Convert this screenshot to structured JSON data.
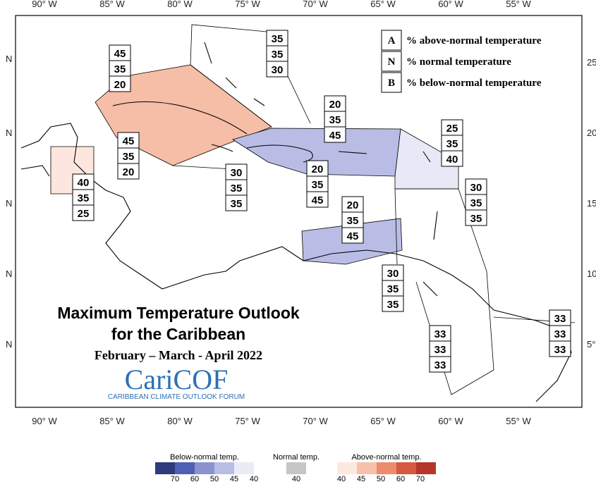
{
  "title": "Maximum Temperature Outlook",
  "subtitle": "for the Caribbean",
  "period": "February – March - April 2022",
  "logo": {
    "name": "CariCOF",
    "tagline": "CARIBBEAN CLIMATE OUTLOOK FORUM"
  },
  "longitude_labels": [
    "90° W",
    "85° W",
    "80° W",
    "75° W",
    "70° W",
    "65° W",
    "60° W",
    "55° W"
  ],
  "latitude_labels_left": [
    "N",
    "N",
    "N",
    "N",
    "N"
  ],
  "latitude_labels_right": [
    "25",
    "20",
    "15",
    "10",
    "5°"
  ],
  "key": [
    {
      "letter": "A",
      "text": "% above-normal temperature"
    },
    {
      "letter": "N",
      "text": "% normal temperature"
    },
    {
      "letter": "B",
      "text": "% below-normal temperature"
    }
  ],
  "regions": [
    {
      "values": [
        35,
        35,
        30
      ]
    },
    {
      "values": [
        45,
        35,
        20
      ]
    },
    {
      "values": [
        20,
        35,
        45
      ]
    },
    {
      "values": [
        25,
        35,
        40
      ]
    },
    {
      "values": [
        45,
        35,
        20
      ]
    },
    {
      "values": [
        40,
        35,
        25
      ]
    },
    {
      "values": [
        30,
        35,
        35
      ]
    },
    {
      "values": [
        20,
        35,
        45
      ]
    },
    {
      "values": [
        30,
        35,
        35
      ]
    },
    {
      "values": [
        20,
        35,
        45
      ]
    },
    {
      "values": [
        30,
        35,
        35
      ]
    },
    {
      "values": [
        33,
        33,
        33
      ]
    },
    {
      "values": [
        33,
        33,
        33
      ]
    }
  ],
  "color_scale": {
    "below": {
      "title": "Below-normal temp.",
      "ticks": [
        70,
        60,
        50,
        45,
        40
      ],
      "colors": [
        "#2e3b7c",
        "#4f5fb3",
        "#8b92cf",
        "#b9bde6",
        "#e9ebf7"
      ]
    },
    "normal": {
      "title": "Normal temp.",
      "ticks": [
        40
      ],
      "colors": [
        "#c6c6c6"
      ]
    },
    "above": {
      "title": "Above-normal temp.",
      "ticks": [
        40,
        45,
        50,
        60,
        70
      ],
      "colors": [
        "#fde8e0",
        "#f7c1a9",
        "#ec8b6d",
        "#d65a3f",
        "#b5352a"
      ]
    }
  }
}
